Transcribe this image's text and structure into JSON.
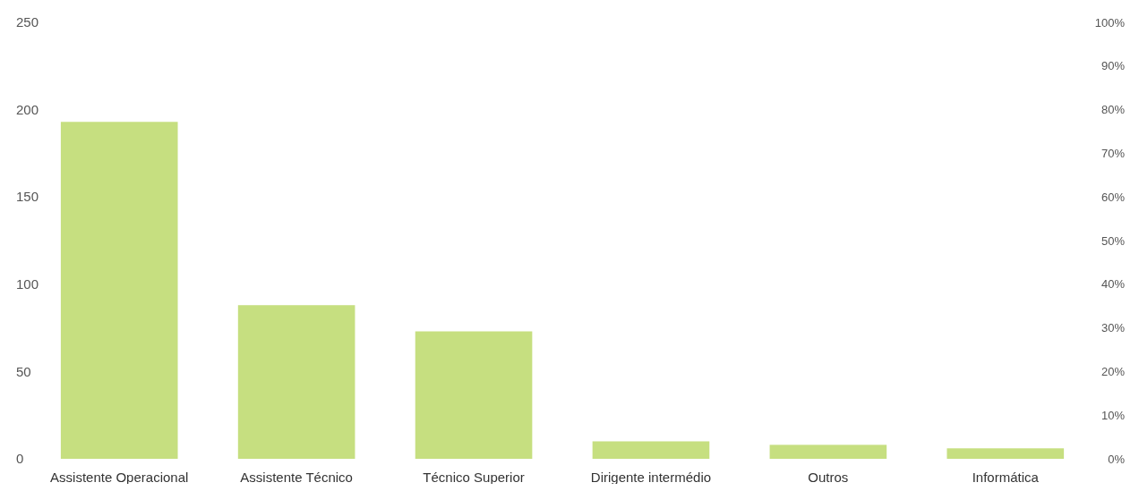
{
  "chart_data": {
    "type": "bar",
    "categories": [
      "Assistente Operacional",
      "Assistente Técnico",
      "Técnico Superior",
      "Dirigente intermédio",
      "Outros",
      "Informática"
    ],
    "series": [
      {
        "color": "#c6df80",
        "values": [
          193,
          88,
          73,
          10,
          8,
          6
        ]
      }
    ],
    "ylim": [
      0,
      250
    ],
    "yticks": [
      0,
      50,
      100,
      150,
      200,
      250
    ],
    "y2lim": [
      0,
      100
    ],
    "y2ticks": [
      {
        "value": 0,
        "label": "0%"
      },
      {
        "value": 10,
        "label": "10%"
      },
      {
        "value": 20,
        "label": "20%"
      },
      {
        "value": 30,
        "label": "30%"
      },
      {
        "value": 40,
        "label": "40%"
      },
      {
        "value": 50,
        "label": "50%"
      },
      {
        "value": 60,
        "label": "60%"
      },
      {
        "value": 70,
        "label": "70%"
      },
      {
        "value": 80,
        "label": "80%"
      },
      {
        "value": 90,
        "label": "90%"
      },
      {
        "value": 100,
        "label": "100%"
      }
    ],
    "grid": false
  }
}
